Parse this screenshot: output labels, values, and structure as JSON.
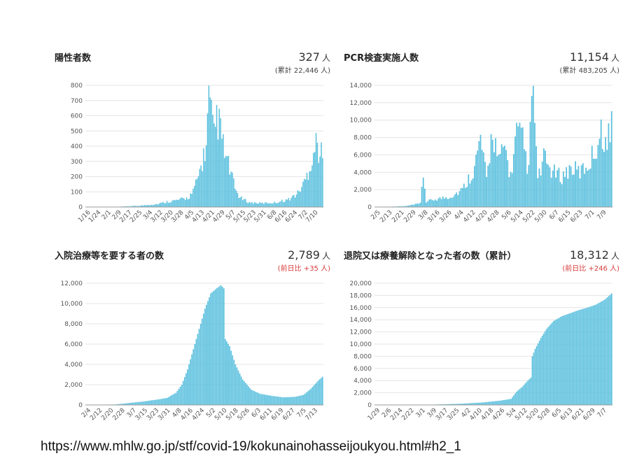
{
  "panels": [
    {
      "title": "陽性者数",
      "value": "327",
      "unit": "人",
      "sub": "(累計 22,446 人)",
      "sub_red": false
    },
    {
      "title": "PCR検査実施人数",
      "value": "11,154",
      "unit": "人",
      "sub": "(累計 483,205 人)",
      "sub_red": false
    },
    {
      "title": "入院治療等を要する者の数",
      "value": "2,789",
      "unit": "人",
      "sub": "(前日比 +35 人)",
      "sub_red": true
    },
    {
      "title": "退院又は療養解除となった者の数（累計）",
      "value": "18,312",
      "unit": "人",
      "sub": "(前日比 +246 人)",
      "sub_red": true
    }
  ],
  "footer_url": "https://www.mhlw.go.jp/stf/covid-19/kokunainohasseijoukyou.html#h2_1",
  "chart_data": [
    {
      "type": "bar",
      "color": "#5bc0de",
      "ylim": [
        0,
        800
      ],
      "yticks": [
        "0",
        "100",
        "200",
        "300",
        "400",
        "500",
        "600",
        "700",
        "800"
      ],
      "xticks": [
        "1/16",
        "1/24",
        "2/1",
        "2/9",
        "2/17",
        "2/25",
        "3/4",
        "3/12",
        "3/20",
        "3/28",
        "4/5",
        "4/13",
        "4/21",
        "4/29",
        "5/7",
        "5/15",
        "5/23",
        "5/31",
        "6/8",
        "6/16",
        "6/24",
        "7/2",
        "7/10"
      ],
      "nbars": 182,
      "keypoints": [
        [
          0,
          0
        ],
        [
          25,
          2
        ],
        [
          40,
          8
        ],
        [
          55,
          20
        ],
        [
          62,
          35
        ],
        [
          70,
          45
        ],
        [
          78,
          60
        ],
        [
          82,
          100
        ],
        [
          86,
          200
        ],
        [
          89,
          300
        ],
        [
          92,
          400
        ],
        [
          94,
          700
        ],
        [
          96,
          580
        ],
        [
          98,
          450
        ],
        [
          100,
          600
        ],
        [
          103,
          500
        ],
        [
          106,
          350
        ],
        [
          110,
          250
        ],
        [
          114,
          120
        ],
        [
          118,
          60
        ],
        [
          125,
          30
        ],
        [
          135,
          25
        ],
        [
          145,
          30
        ],
        [
          155,
          50
        ],
        [
          162,
          90
        ],
        [
          168,
          180
        ],
        [
          172,
          290
        ],
        [
          176,
          420
        ],
        [
          179,
          360
        ],
        [
          181,
          327
        ]
      ]
    },
    {
      "type": "bar",
      "color": "#5bc0de",
      "ylim": [
        0,
        14000
      ],
      "yticks": [
        "0",
        "2,000",
        "4,000",
        "6,000",
        "8,000",
        "10,000",
        "12,000",
        "14,000"
      ],
      "xticks": [
        "2/5",
        "2/13",
        "2/21",
        "2/29",
        "3/8",
        "3/16",
        "3/26",
        "4/4",
        "4/12",
        "4/20",
        "4/28",
        "5/6",
        "5/14",
        "5/22",
        "5/30",
        "6/7",
        "6/15",
        "6/23",
        "7/1",
        "7/9"
      ],
      "nbars": 158,
      "keypoints": [
        [
          0,
          0
        ],
        [
          20,
          100
        ],
        [
          30,
          400
        ],
        [
          32,
          3800
        ],
        [
          34,
          600
        ],
        [
          40,
          900
        ],
        [
          50,
          1200
        ],
        [
          58,
          2000
        ],
        [
          66,
          4500
        ],
        [
          70,
          7800
        ],
        [
          74,
          3000
        ],
        [
          78,
          9200
        ],
        [
          82,
          5000
        ],
        [
          86,
          7000
        ],
        [
          90,
          3500
        ],
        [
          94,
          8500
        ],
        [
          98,
          7500
        ],
        [
          102,
          4000
        ],
        [
          104,
          12800
        ],
        [
          106,
          10500
        ],
        [
          108,
          3000
        ],
        [
          112,
          5500
        ],
        [
          118,
          4000
        ],
        [
          124,
          3500
        ],
        [
          130,
          4500
        ],
        [
          136,
          4000
        ],
        [
          142,
          5000
        ],
        [
          148,
          7500
        ],
        [
          151,
          8800
        ],
        [
          154,
          6500
        ],
        [
          157,
          11154
        ]
      ]
    },
    {
      "type": "bar",
      "color": "#5bc0de",
      "ylim": [
        0,
        12000
      ],
      "yticks": [
        "0",
        "2,000",
        "4,000",
        "6,000",
        "8,000",
        "10,000",
        "12,000"
      ],
      "xticks": [
        "2/4",
        "2/12",
        "2/20",
        "2/28",
        "3/7",
        "3/15",
        "3/23",
        "3/31",
        "4/8",
        "4/16",
        "4/24",
        "5/2",
        "5/10",
        "5/18",
        "5/26",
        "6/3",
        "6/11",
        "6/19",
        "6/27",
        "7/5",
        "7/13"
      ],
      "nbars": 164,
      "keypoints": [
        [
          0,
          0
        ],
        [
          20,
          50
        ],
        [
          30,
          200
        ],
        [
          40,
          350
        ],
        [
          50,
          550
        ],
        [
          56,
          700
        ],
        [
          62,
          1200
        ],
        [
          66,
          2000
        ],
        [
          70,
          3500
        ],
        [
          74,
          5500
        ],
        [
          78,
          7500
        ],
        [
          82,
          9500
        ],
        [
          86,
          11000
        ],
        [
          90,
          11500
        ],
        [
          93,
          11800
        ],
        [
          95,
          11500
        ],
        [
          96,
          6500
        ],
        [
          99,
          5800
        ],
        [
          103,
          4000
        ],
        [
          108,
          2500
        ],
        [
          114,
          1500
        ],
        [
          120,
          1100
        ],
        [
          128,
          900
        ],
        [
          136,
          750
        ],
        [
          144,
          800
        ],
        [
          150,
          1000
        ],
        [
          155,
          1600
        ],
        [
          160,
          2400
        ],
        [
          163,
          2789
        ]
      ]
    },
    {
      "type": "bar",
      "color": "#5bc0de",
      "ylim": [
        0,
        20000
      ],
      "yticks": [
        "0",
        "2,000",
        "4,000",
        "6,000",
        "8,000",
        "10,000",
        "12,000",
        "14,000",
        "16,000",
        "18,000",
        "20,000"
      ],
      "xticks": [
        "1/29",
        "2/6",
        "2/14",
        "2/22",
        "3/1",
        "3/9",
        "3/17",
        "3/25",
        "4/2",
        "4/10",
        "4/18",
        "4/26",
        "5/4",
        "5/12",
        "5/20",
        "5/28",
        "6/5",
        "6/13",
        "6/21",
        "6/29",
        "7/7"
      ],
      "nbars": 168,
      "keypoints": [
        [
          0,
          0
        ],
        [
          40,
          50
        ],
        [
          60,
          200
        ],
        [
          75,
          400
        ],
        [
          88,
          700
        ],
        [
          96,
          1000
        ],
        [
          100,
          2200
        ],
        [
          104,
          3000
        ],
        [
          107,
          3800
        ],
        [
          110,
          4500
        ],
        [
          111,
          8000
        ],
        [
          113,
          9200
        ],
        [
          117,
          11000
        ],
        [
          121,
          12500
        ],
        [
          126,
          13800
        ],
        [
          132,
          14600
        ],
        [
          138,
          15100
        ],
        [
          144,
          15600
        ],
        [
          150,
          16000
        ],
        [
          156,
          16500
        ],
        [
          162,
          17300
        ],
        [
          167,
          18312
        ]
      ]
    }
  ]
}
